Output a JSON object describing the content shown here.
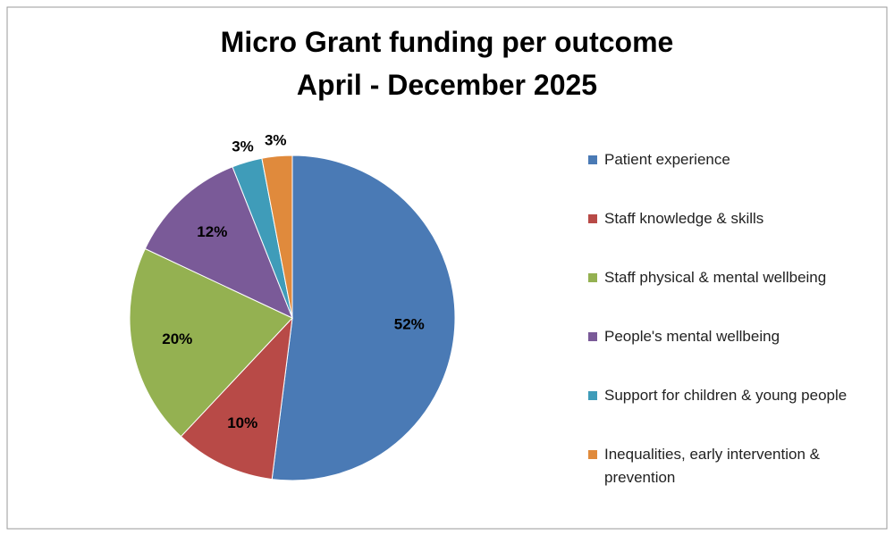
{
  "chart_data": {
    "type": "pie",
    "title": [
      "Micro Grant funding per outcome",
      "April - December 2025"
    ],
    "categories": [
      "Patient experience",
      "Staff knowledge & skills",
      "Staff physical & mental wellbeing",
      "People's mental wellbeing",
      "Support for children & young people",
      "Inequalities, early intervention & prevention"
    ],
    "values": [
      52,
      10,
      20,
      12,
      3,
      3
    ],
    "value_labels": [
      "52%",
      "10%",
      "20%",
      "12%",
      "3%",
      "3%"
    ],
    "colors": [
      "#4a7ab5",
      "#b84a47",
      "#94b151",
      "#7a5a98",
      "#3f9cb9",
      "#e08a3c"
    ],
    "legend": "right"
  }
}
